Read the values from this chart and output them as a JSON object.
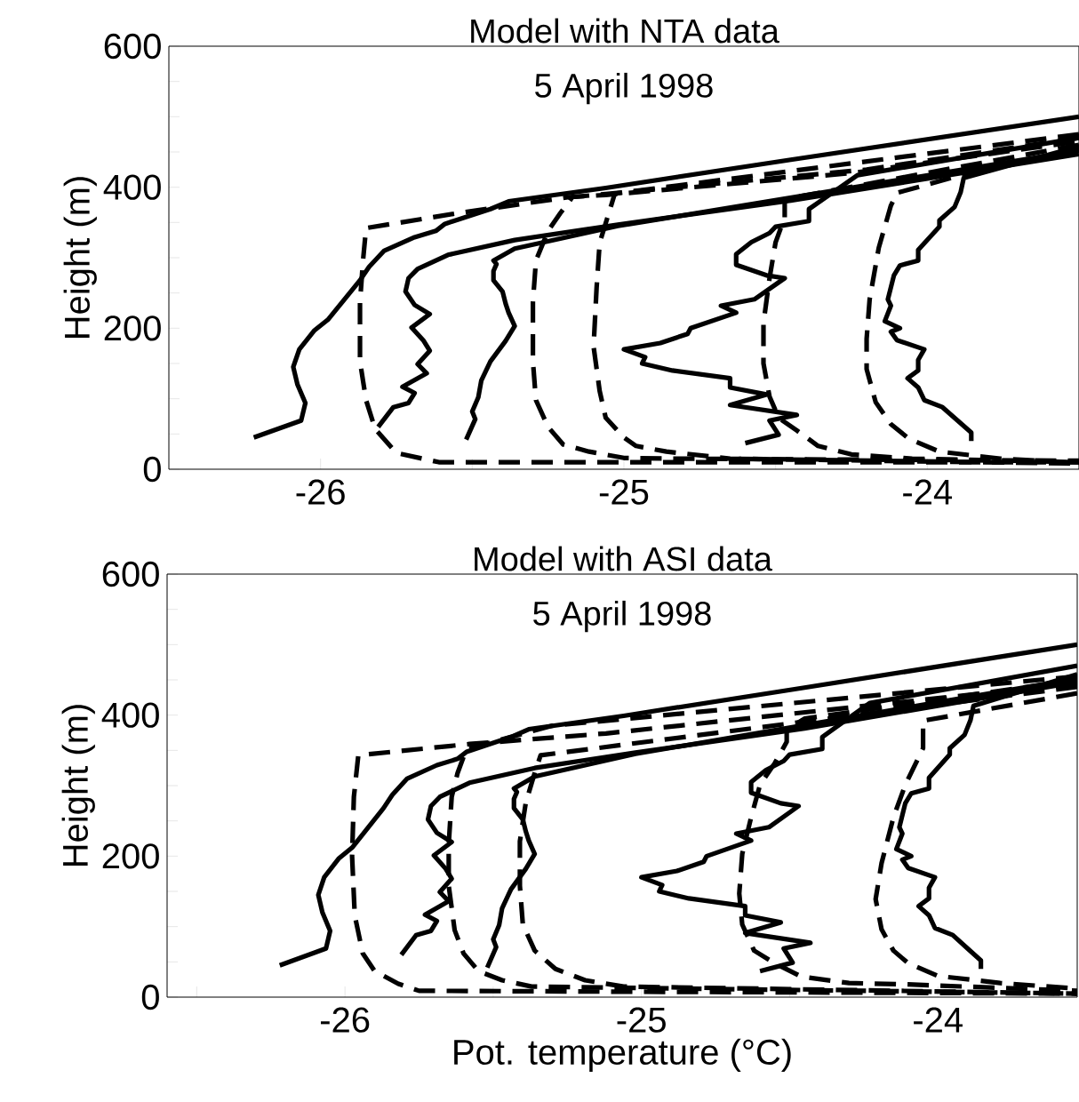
{
  "chart_data": [
    {
      "type": "line",
      "title": "Model with NTA data",
      "ylabel": "Height (m)",
      "annotations": [
        "5 April 1998"
      ],
      "xlim": [
        -26.5,
        -23.5
      ],
      "ylim": [
        0,
        600
      ],
      "xticks": [
        -26,
        {
          "value": -25.5,
          "label": null
        },
        -25,
        {
          "value": -24.5,
          "label": null
        },
        -24
      ],
      "yticks": [
        0,
        {
          "value": 50,
          "label": null
        },
        {
          "value": 100,
          "label": null
        },
        {
          "value": 150,
          "label": null
        },
        200,
        {
          "value": 250,
          "label": null
        },
        {
          "value": 300,
          "label": null
        },
        {
          "value": 350,
          "label": null
        },
        400,
        {
          "value": 450,
          "label": null
        },
        {
          "value": 500,
          "label": null
        },
        {
          "value": 550,
          "label": null
        },
        600
      ],
      "series": [
        {
          "color": "#000000",
          "line_style": "solid",
          "x": [
            -26.22,
            -26.064,
            -26.05,
            -26.076,
            -26.09,
            -26.07,
            -26.02,
            -25.976,
            -25.87,
            -25.84,
            -25.79,
            -25.69,
            -25.62,
            -25.59,
            -25.44,
            -25.38,
            -25.06,
            -24.45,
            -23.5
          ],
          "values": [
            45,
            69,
            94,
            120,
            145,
            170,
            197,
            212,
            268,
            287,
            310,
            329,
            338,
            348,
            369,
            380,
            399,
            439,
            500
          ]
        },
        {
          "color": "#000000",
          "line_style": "solid",
          "x": [
            -25.81,
            -25.76,
            -25.71,
            -25.69,
            -25.73,
            -25.65,
            -25.68,
            -25.64,
            -25.66,
            -25.7,
            -25.64,
            -25.69,
            -25.72,
            -25.71,
            -25.68,
            -25.58,
            -25.36,
            -25.02,
            -24.45,
            -23.5
          ],
          "values": [
            60,
            88,
            94,
            108,
            117,
            136,
            149,
            168,
            182,
            201,
            220,
            233,
            252,
            271,
            284,
            304,
            325,
            347,
            381,
            447
          ]
        },
        {
          "color": "#000000",
          "line_style": "solid",
          "x": [
            -25.52,
            -25.49,
            -25.5,
            -25.48,
            -25.47,
            -25.44,
            -25.39,
            -25.36,
            -25.38,
            -25.39,
            -25.4,
            -25.43,
            -25.43,
            -25.42,
            -25.43,
            -25.36,
            -25.02,
            -23.5
          ],
          "values": [
            42,
            71,
            82,
            102,
            126,
            153,
            182,
            203,
            222,
            235,
            252,
            268,
            281,
            291,
            296,
            313,
            345,
            452
          ]
        },
        {
          "color": "#000000",
          "line_style": "solid",
          "x": [
            -24.6,
            -24.49,
            -24.52,
            -24.43,
            -24.65,
            -24.53,
            -24.65,
            -24.65,
            -24.84,
            -24.94,
            -24.93,
            -25.0,
            -24.88,
            -24.79,
            -24.78,
            -24.63,
            -24.68,
            -24.57,
            -24.47,
            -24.53,
            -24.63,
            -24.63,
            -24.58,
            -24.52,
            -24.5,
            -24.39,
            -24.39,
            -24.36,
            -24.23,
            -23.5
          ],
          "values": [
            37,
            49,
            69,
            77,
            91,
            106,
            116,
            129,
            140,
            150,
            159,
            170,
            179,
            192,
            200,
            222,
            232,
            241,
            271,
            275,
            290,
            305,
            322,
            335,
            344,
            352,
            369,
            378,
            417,
            470
          ]
        },
        {
          "color": "#000000",
          "line_style": "solid",
          "x": [
            -23.855,
            -23.855,
            -23.9,
            -23.95,
            -24.01,
            -24.03,
            -24.065,
            -24.03,
            -24.03,
            -24.01,
            -24.1,
            -24.12,
            -24.09,
            -24.14,
            -24.12,
            -24.13,
            -24.11,
            -24.09,
            -24.03,
            -24.03,
            -23.96,
            -23.96,
            -23.91,
            -23.89,
            -23.88,
            -23.5
          ],
          "values": [
            40,
            52,
            69,
            88,
            98,
            116,
            129,
            140,
            155,
            170,
            183,
            195,
            200,
            210,
            232,
            241,
            275,
            289,
            296,
            311,
            344,
            353,
            372,
            393,
            413,
            458
          ]
        },
        {
          "color": "#000000",
          "line_style": "dashed",
          "x": [
            -23.5,
            -25.61,
            -25.75,
            -25.82,
            -25.85,
            -25.87,
            -25.87,
            -25.86,
            -25.85,
            -25.55,
            -25.18,
            -25.06,
            -24.25,
            -23.5
          ],
          "values": [
            10,
            10,
            23,
            57,
            98,
            153,
            237,
            296,
            342,
            363,
            386,
            389,
            420,
            465
          ]
        },
        {
          "color": "#000000",
          "line_style": "dashed",
          "x": [
            -23.5,
            -24.2,
            -25.17,
            -25.18,
            -25.21,
            -25.25,
            -25.29,
            -25.3,
            -25.3,
            -25.29,
            -25.25,
            -25.2,
            -25.115,
            -25.0,
            -24.83,
            -23.5
          ],
          "values": [
            470,
            425,
            386,
            380,
            363,
            338,
            296,
            237,
            153,
            98,
            60,
            35,
            25,
            16,
            15,
            12
          ]
        },
        {
          "color": "#000000",
          "line_style": "dashed",
          "x": [
            -23.5,
            -25.03,
            -25.08,
            -25.09,
            -25.1,
            -25.08,
            -25.06,
            -25.0,
            -24.96,
            -24.86,
            -24.65,
            -23.5
          ],
          "values": [
            475,
            391,
            321,
            258,
            174,
            111,
            73,
            45,
            33,
            25,
            15,
            8
          ]
        },
        {
          "color": "#000000",
          "line_style": "dashed",
          "x": [
            -23.5,
            -24.47,
            -24.47,
            -24.5,
            -24.52,
            -24.54,
            -24.54,
            -24.52,
            -24.49,
            -24.43,
            -24.36,
            -24.25,
            -24.05,
            -23.5
          ],
          "values": [
            460,
            383,
            357,
            322,
            271,
            207,
            150,
            103,
            73,
            55,
            33,
            21,
            15,
            10
          ]
        },
        {
          "color": "#000000",
          "line_style": "dashed",
          "x": [
            -23.5,
            -23.855,
            -24.1,
            -24.12,
            -24.16,
            -24.19,
            -24.2,
            -24.2,
            -24.17,
            -24.12,
            -24.06,
            -23.96,
            -23.76,
            -23.5
          ],
          "values": [
            455,
            421,
            392,
            374,
            314,
            241,
            185,
            142,
            95,
            64,
            43,
            25,
            15,
            9
          ]
        }
      ]
    },
    {
      "type": "line",
      "title": "Model with ASI data",
      "xlabel": "Pot. temperature (°C)",
      "ylabel": "Height (m)",
      "annotations": [
        "5 April 1998"
      ],
      "xlim": [
        -26.6,
        -23.53
      ],
      "ylim": [
        0,
        600
      ],
      "xticks": [
        {
          "value": -26.5,
          "label": null
        },
        -26,
        {
          "value": -25.5,
          "label": null
        },
        -25,
        {
          "value": -24.5,
          "label": null
        },
        -24
      ],
      "yticks": [
        0,
        {
          "value": 50,
          "label": null
        },
        {
          "value": 100,
          "label": null
        },
        {
          "value": 150,
          "label": null
        },
        200,
        {
          "value": 250,
          "label": null
        },
        {
          "value": 300,
          "label": null
        },
        {
          "value": 350,
          "label": null
        },
        400,
        {
          "value": 450,
          "label": null
        },
        {
          "value": 500,
          "label": null
        },
        {
          "value": 550,
          "label": null
        },
        600
      ],
      "series": [
        {
          "color": "#000000",
          "line_style": "solid",
          "x": [
            -26.22,
            -26.064,
            -26.05,
            -26.076,
            -26.09,
            -26.07,
            -26.02,
            -25.976,
            -25.87,
            -25.84,
            -25.79,
            -25.69,
            -25.62,
            -25.59,
            -25.44,
            -25.38,
            -25.06,
            -24.45,
            -23.53
          ],
          "values": [
            45,
            69,
            94,
            120,
            145,
            170,
            197,
            212,
            268,
            287,
            310,
            329,
            338,
            348,
            369,
            380,
            399,
            439,
            500
          ]
        },
        {
          "color": "#000000",
          "line_style": "solid",
          "x": [
            -25.81,
            -25.76,
            -25.71,
            -25.69,
            -25.73,
            -25.65,
            -25.68,
            -25.64,
            -25.66,
            -25.7,
            -25.64,
            -25.69,
            -25.72,
            -25.71,
            -25.68,
            -25.58,
            -25.36,
            -25.02,
            -24.45,
            -23.53
          ],
          "values": [
            60,
            88,
            94,
            108,
            117,
            136,
            149,
            168,
            182,
            201,
            220,
            233,
            252,
            271,
            284,
            304,
            325,
            347,
            381,
            447
          ]
        },
        {
          "color": "#000000",
          "line_style": "solid",
          "x": [
            -25.52,
            -25.49,
            -25.5,
            -25.48,
            -25.47,
            -25.44,
            -25.39,
            -25.36,
            -25.38,
            -25.39,
            -25.4,
            -25.43,
            -25.43,
            -25.42,
            -25.43,
            -25.36,
            -25.02,
            -23.53
          ],
          "values": [
            42,
            71,
            82,
            102,
            126,
            153,
            182,
            203,
            222,
            235,
            252,
            268,
            281,
            291,
            296,
            313,
            345,
            452
          ]
        },
        {
          "color": "#000000",
          "line_style": "solid",
          "x": [
            -24.6,
            -24.49,
            -24.52,
            -24.43,
            -24.65,
            -24.53,
            -24.65,
            -24.65,
            -24.84,
            -24.94,
            -24.93,
            -25.0,
            -24.88,
            -24.79,
            -24.78,
            -24.63,
            -24.68,
            -24.57,
            -24.47,
            -24.53,
            -24.63,
            -24.63,
            -24.58,
            -24.52,
            -24.5,
            -24.39,
            -24.39,
            -24.36,
            -24.23,
            -23.53
          ],
          "values": [
            37,
            49,
            69,
            77,
            91,
            106,
            116,
            129,
            140,
            150,
            159,
            170,
            179,
            192,
            200,
            222,
            232,
            241,
            271,
            275,
            290,
            305,
            322,
            335,
            344,
            352,
            369,
            378,
            417,
            470
          ]
        },
        {
          "color": "#000000",
          "line_style": "solid",
          "x": [
            -23.855,
            -23.855,
            -23.9,
            -23.95,
            -24.01,
            -24.03,
            -24.065,
            -24.03,
            -24.03,
            -24.01,
            -24.1,
            -24.12,
            -24.09,
            -24.14,
            -24.12,
            -24.13,
            -24.11,
            -24.09,
            -24.03,
            -24.03,
            -23.96,
            -23.96,
            -23.91,
            -23.89,
            -23.88,
            -23.53
          ],
          "values": [
            40,
            52,
            69,
            88,
            98,
            116,
            129,
            140,
            155,
            170,
            183,
            195,
            200,
            210,
            232,
            241,
            275,
            289,
            296,
            311,
            344,
            353,
            372,
            393,
            413,
            458
          ]
        },
        {
          "color": "#000000",
          "line_style": "dashed",
          "x": [
            -23.53,
            -25.12,
            -25.58,
            -25.955,
            -25.97,
            -25.976,
            -25.967,
            -25.94,
            -25.9,
            -25.82,
            -25.75,
            -23.53
          ],
          "values": [
            445,
            374,
            359,
            343,
            284,
            200,
            116,
            62,
            37,
            19,
            9,
            5
          ]
        },
        {
          "color": "#000000",
          "line_style": "dashed",
          "x": [
            -23.53,
            -25.3,
            -25.59,
            -25.62,
            -25.64,
            -25.65,
            -25.65,
            -25.63,
            -25.6,
            -25.55,
            -25.47,
            -25.37,
            -23.53
          ],
          "values": [
            455,
            385,
            352,
            318,
            284,
            217,
            158,
            95,
            62,
            37,
            24,
            15,
            5
          ]
        },
        {
          "color": "#000000",
          "line_style": "dashed",
          "x": [
            -23.53,
            -25.34,
            -25.36,
            -25.39,
            -25.41,
            -25.41,
            -25.4,
            -25.36,
            -25.29,
            -25.19,
            -25.06,
            -23.53
          ],
          "values": [
            440,
            343,
            318,
            276,
            221,
            158,
            103,
            66,
            40,
            24,
            15,
            5
          ]
        },
        {
          "color": "#000000",
          "line_style": "dashed",
          "x": [
            -23.53,
            -24.45,
            -24.51,
            -24.51,
            -24.55,
            -24.6,
            -24.63,
            -24.66,
            -24.67,
            -24.66,
            -24.62,
            -24.55,
            -24.46,
            -24.3,
            -24.1,
            -23.53
          ],
          "values": [
            450,
            395,
            379,
            362,
            332,
            301,
            255,
            203,
            147,
            103,
            66,
            48,
            29,
            20,
            18,
            9
          ]
        },
        {
          "color": "#000000",
          "line_style": "dashed",
          "x": [
            -23.53,
            -24.05,
            -24.05,
            -24.11,
            -24.15,
            -24.19,
            -24.21,
            -24.19,
            -24.15,
            -24.1,
            -24.0,
            -23.79,
            -23.53
          ],
          "values": [
            431,
            392,
            353,
            301,
            255,
            190,
            139,
            96,
            66,
            48,
            30,
            20,
            12
          ]
        }
      ]
    }
  ]
}
